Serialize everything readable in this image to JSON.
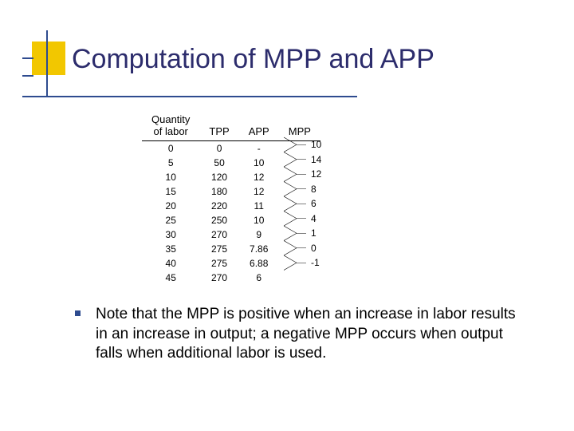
{
  "title": "Computation of MPP and APP",
  "accent": {
    "box_color": "#f2c700",
    "line_color": "#2e4b8f"
  },
  "table": {
    "headers": {
      "qty": "Quantity\nof labor",
      "tpp": "TPP",
      "app": "APP",
      "mpp": "MPP"
    },
    "rows": [
      {
        "qty": "0",
        "tpp": "0",
        "app": "-"
      },
      {
        "qty": "5",
        "tpp": "50",
        "app": "10"
      },
      {
        "qty": "10",
        "tpp": "120",
        "app": "12"
      },
      {
        "qty": "15",
        "tpp": "180",
        "app": "12"
      },
      {
        "qty": "20",
        "tpp": "220",
        "app": "11"
      },
      {
        "qty": "25",
        "tpp": "250",
        "app": "10"
      },
      {
        "qty": "30",
        "tpp": "270",
        "app": "9"
      },
      {
        "qty": "35",
        "tpp": "275",
        "app": "7.86"
      },
      {
        "qty": "40",
        "tpp": "275",
        "app": "6.88"
      },
      {
        "qty": "45",
        "tpp": "270",
        "app": "6"
      }
    ],
    "mpp": [
      "10",
      "14",
      "12",
      "8",
      "6",
      "4",
      "1",
      "0",
      "-1"
    ],
    "font_size_header": 13,
    "font_size_cell": 12,
    "text_color": "#000000"
  },
  "note": {
    "text": "Note that the MPP is positive when an increase in labor results in an increase in output; a negative MPP occurs when output falls when additional labor is used.",
    "bullet_color": "#2e4b8f",
    "font_size": 19
  },
  "bracket": {
    "stroke": "#000000",
    "stroke_width": 0.6
  }
}
